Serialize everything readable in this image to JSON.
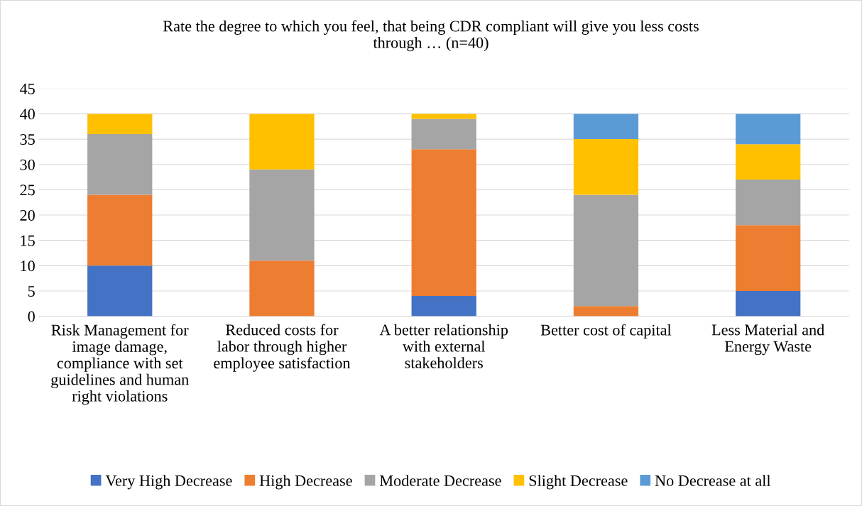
{
  "chart_data": {
    "type": "bar",
    "stacked": true,
    "title": "Rate the degree to which you feel, that being CDR compliant will give you less costs through … (n=40)",
    "categories": [
      "Risk Management for image damage, compliance with set guidelines and human right violations",
      "Reduced costs for labor through higher employee satisfaction",
      "A better relationship with external stakeholders",
      "Better cost of capital",
      "Less Material and Energy Waste"
    ],
    "series": [
      {
        "name": "Very High Decrease",
        "color": "#4472c4",
        "values": [
          10,
          0,
          4,
          0,
          5
        ]
      },
      {
        "name": "High Decrease",
        "color": "#ed7d31",
        "values": [
          14,
          11,
          29,
          2,
          13
        ]
      },
      {
        "name": "Moderate Decrease",
        "color": "#a5a5a5",
        "values": [
          12,
          18,
          6,
          22,
          9
        ]
      },
      {
        "name": "Slight Decrease",
        "color": "#ffc000",
        "values": [
          4,
          11,
          1,
          11,
          7
        ]
      },
      {
        "name": "No Decrease at all",
        "color": "#5b9bd5",
        "values": [
          0,
          0,
          0,
          5,
          6
        ]
      }
    ],
    "ylim": [
      0,
      45
    ],
    "yticks": [
      0,
      5,
      10,
      15,
      20,
      25,
      30,
      35,
      40,
      45
    ],
    "grid": "y",
    "legend": "bottom"
  }
}
